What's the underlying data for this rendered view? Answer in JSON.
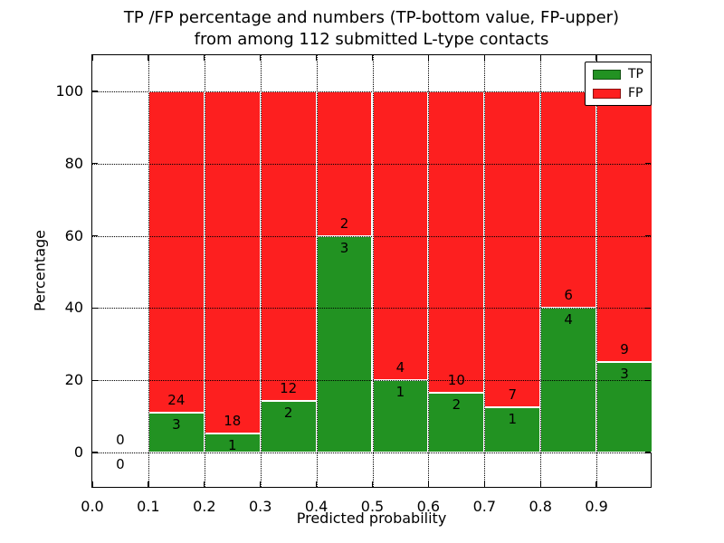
{
  "title": {
    "line1": "TP /FP percentage and numbers (TP-bottom value, FP-upper)",
    "line2": "from among 112 submitted L-type contacts"
  },
  "axes": {
    "xlabel": "Predicted probability",
    "ylabel": "Percentage",
    "yticks": [
      0,
      20,
      40,
      60,
      80,
      100
    ],
    "xticks": [
      {
        "label": "0.0",
        "value": 0.0
      },
      {
        "label": "0.1",
        "value": 0.1
      },
      {
        "label": "0.2",
        "value": 0.2
      },
      {
        "label": "0.3",
        "value": 0.3
      },
      {
        "label": "0.4",
        "value": 0.4
      },
      {
        "label": "0.5",
        "value": 0.5
      },
      {
        "label": "0.6",
        "value": 0.6
      },
      {
        "label": "0.7",
        "value": 0.7
      },
      {
        "label": "0.8",
        "value": 0.8
      },
      {
        "label": "0.9",
        "value": 0.9
      }
    ]
  },
  "legend": {
    "items": [
      {
        "label": "TP",
        "color": "#229222"
      },
      {
        "label": "FP",
        "color": "#fd1f1f"
      }
    ]
  },
  "colors": {
    "tp": "#229222",
    "fp": "#fd1f1f",
    "bar_edge": "#ffffff",
    "grid": "#000000",
    "text": "#000000",
    "background": "#ffffff"
  },
  "chart_data": {
    "type": "bar",
    "stacked": true,
    "percentage_stack_total": 100,
    "title": "TP /FP percentage and numbers (TP-bottom value, FP-upper) from among 112 submitted L-type contacts",
    "xlabel": "Predicted probability",
    "ylabel": "Percentage",
    "xlim": [
      0.0,
      1.0
    ],
    "ylim": [
      -10,
      110
    ],
    "grid": "dotted both axes",
    "legend_position": "upper right",
    "total_contacts": 112,
    "categories": [
      "0.0-0.1",
      "0.1-0.2",
      "0.2-0.3",
      "0.3-0.4",
      "0.4-0.5",
      "0.5-0.6",
      "0.6-0.7",
      "0.7-0.8",
      "0.8-0.9",
      "0.9-1.0"
    ],
    "series": [
      {
        "name": "TP",
        "counts": [
          0,
          3,
          1,
          2,
          3,
          1,
          2,
          1,
          4,
          3
        ]
      },
      {
        "name": "FP",
        "counts": [
          0,
          24,
          18,
          12,
          2,
          4,
          10,
          7,
          6,
          9
        ]
      }
    ],
    "bins": [
      {
        "x0": 0.0,
        "x1": 0.1,
        "tp": 0,
        "fp": 0,
        "tp_pct": 0,
        "has_bar": false
      },
      {
        "x0": 0.1,
        "x1": 0.2,
        "tp": 3,
        "fp": 24,
        "tp_pct": 11.11,
        "has_bar": true
      },
      {
        "x0": 0.2,
        "x1": 0.3,
        "tp": 1,
        "fp": 18,
        "tp_pct": 5.26,
        "has_bar": true
      },
      {
        "x0": 0.3,
        "x1": 0.4,
        "tp": 2,
        "fp": 12,
        "tp_pct": 14.29,
        "has_bar": true
      },
      {
        "x0": 0.4,
        "x1": 0.5,
        "tp": 3,
        "fp": 2,
        "tp_pct": 60.0,
        "has_bar": true
      },
      {
        "x0": 0.5,
        "x1": 0.6,
        "tp": 1,
        "fp": 4,
        "tp_pct": 20.0,
        "has_bar": true
      },
      {
        "x0": 0.6,
        "x1": 0.7,
        "tp": 2,
        "fp": 10,
        "tp_pct": 16.67,
        "has_bar": true
      },
      {
        "x0": 0.7,
        "x1": 0.8,
        "tp": 1,
        "fp": 7,
        "tp_pct": 12.5,
        "has_bar": true
      },
      {
        "x0": 0.8,
        "x1": 0.9,
        "tp": 4,
        "fp": 6,
        "tp_pct": 40.0,
        "has_bar": true
      },
      {
        "x0": 0.9,
        "x1": 1.0,
        "tp": 3,
        "fp": 9,
        "tp_pct": 25.0,
        "has_bar": true
      }
    ]
  }
}
